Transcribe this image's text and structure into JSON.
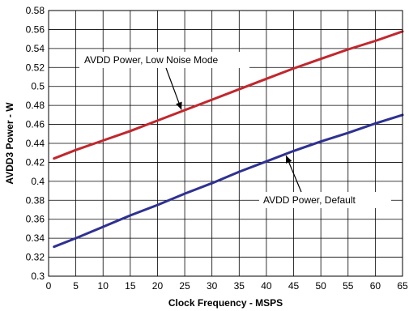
{
  "chart_data": {
    "type": "line",
    "title": "",
    "xlabel": "Clock Frequency - MSPS",
    "ylabel": "AVDD3 Power - W",
    "xlim": [
      0,
      65
    ],
    "ylim": [
      0.3,
      0.58
    ],
    "xticks": [
      0,
      5,
      10,
      15,
      20,
      25,
      30,
      35,
      40,
      45,
      50,
      55,
      60,
      65
    ],
    "yticks": [
      0.3,
      0.32,
      0.34,
      0.36,
      0.38,
      0.4,
      0.42,
      0.44,
      0.46,
      0.48,
      0.5,
      0.52,
      0.54,
      0.56,
      0.58
    ],
    "grid": true,
    "legend": "none",
    "series": [
      {
        "name": "AVDD Power, Low Noise Mode",
        "color": "#c1272d",
        "x": [
          1,
          5,
          10,
          15,
          20,
          25,
          30,
          35,
          40,
          45,
          50,
          55,
          60,
          65
        ],
        "y": [
          0.424,
          0.433,
          0.443,
          0.453,
          0.464,
          0.475,
          0.486,
          0.497,
          0.508,
          0.519,
          0.529,
          0.539,
          0.548,
          0.558
        ]
      },
      {
        "name": "AVDD Power, Default",
        "color": "#2e3192",
        "x": [
          1,
          5,
          10,
          15,
          20,
          25,
          30,
          35,
          40,
          45,
          50,
          55,
          60,
          65
        ],
        "y": [
          0.331,
          0.34,
          0.352,
          0.364,
          0.375,
          0.387,
          0.398,
          0.41,
          0.421,
          0.432,
          0.442,
          0.451,
          0.461,
          0.47
        ]
      }
    ],
    "annotations": [
      {
        "text": "AVDD Power, Low Noise Mode",
        "series": 0,
        "point_x": 24.5
      },
      {
        "text": "AVDD Power, Default",
        "series": 1,
        "point_x": 43.5
      }
    ]
  }
}
